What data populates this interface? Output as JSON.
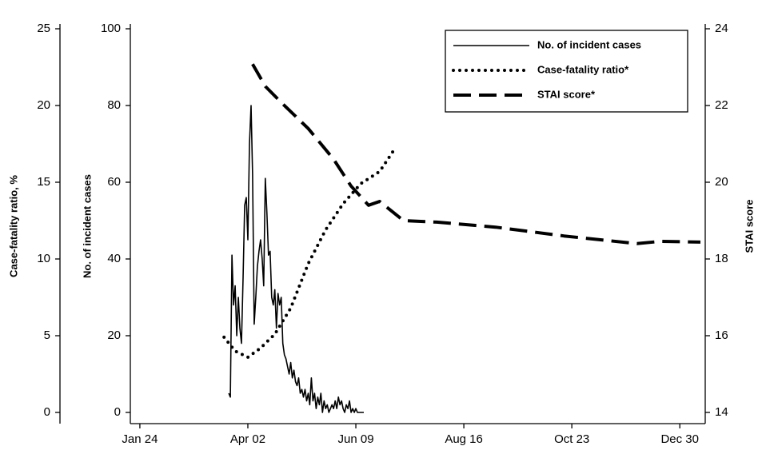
{
  "chart_data": {
    "type": "line",
    "ylabel": "No. of incident cases",
    "y2label": "STAI score",
    "y3label": "Case-fatality ratio, %",
    "xlim": [
      18,
      380
    ],
    "xticks": [
      {
        "value": 24,
        "label": "Jan 24"
      },
      {
        "value": 92,
        "label": "Apr 02"
      },
      {
        "value": 160,
        "label": "Jun 09"
      },
      {
        "value": 228,
        "label": "Aug 16"
      },
      {
        "value": 296,
        "label": "Oct 23"
      },
      {
        "value": 364,
        "label": "Dec 30"
      }
    ],
    "ylim": [
      0,
      100
    ],
    "yticks": [
      0,
      20,
      40,
      60,
      80,
      100
    ],
    "y2lim": [
      14,
      24
    ],
    "y2ticks": [
      14,
      16,
      18,
      20,
      22,
      24
    ],
    "y3lim": [
      0,
      25
    ],
    "y3ticks": [
      0,
      5,
      10,
      15,
      20,
      25
    ],
    "legend": "top-right",
    "series": [
      {
        "name": "No. of incident cases",
        "color": "#000000",
        "linestyle": "solid",
        "axis": "y",
        "x": [
          80,
          81,
          82,
          83,
          84,
          85,
          86,
          87,
          88,
          89,
          90,
          91,
          92,
          93,
          94,
          95,
          96,
          97,
          98,
          99,
          100,
          101,
          102,
          103,
          104,
          105,
          106,
          107,
          108,
          109,
          110,
          111,
          112,
          113,
          114,
          115,
          116,
          117,
          118,
          119,
          120,
          121,
          122,
          123,
          124,
          125,
          126,
          127,
          128,
          129,
          130,
          131,
          132,
          133,
          134,
          135,
          136,
          137,
          138,
          139,
          140,
          141,
          142,
          143,
          144,
          145,
          146,
          147,
          148,
          149,
          150,
          151,
          152,
          153,
          154,
          155,
          156,
          157,
          158,
          159,
          160,
          161,
          162,
          163,
          164,
          165
        ],
        "values": [
          5,
          4,
          41,
          28,
          33,
          20,
          30,
          22,
          18,
          35,
          54,
          56,
          45,
          70,
          80,
          62,
          23,
          30,
          38,
          42,
          45,
          40,
          33,
          61,
          52,
          41,
          42,
          30,
          28,
          32,
          22,
          31,
          28,
          30,
          18,
          15,
          14,
          12,
          10,
          13,
          9,
          11,
          8,
          7,
          9,
          5,
          6,
          4,
          6,
          3,
          5,
          2,
          9,
          3,
          5,
          1,
          4,
          2,
          5,
          0,
          3,
          1,
          2,
          0,
          1,
          2,
          1,
          3,
          1,
          4,
          2,
          3,
          1,
          0,
          2,
          1,
          3,
          0,
          1,
          0,
          1,
          0,
          0,
          0,
          0,
          0
        ]
      },
      {
        "name": "Case-fatality ratio*",
        "color": "#000000",
        "linestyle": "dotted",
        "axis": "y3",
        "x": [
          77,
          84,
          92,
          100,
          109,
          119,
          130,
          141,
          152,
          163,
          175,
          184
        ],
        "values": [
          4.9,
          4.0,
          3.6,
          4.2,
          5.1,
          6.8,
          9.7,
          11.9,
          13.6,
          14.9,
          15.7,
          17.1
        ]
      },
      {
        "name": "STAI score*",
        "color": "#000000",
        "linestyle": "dashed",
        "axis": "y2",
        "x": [
          95,
          103,
          114,
          130,
          146,
          157,
          168,
          175,
          190,
          211,
          248,
          291,
          337,
          352,
          377
        ],
        "values": [
          23.08,
          22.5,
          22.04,
          21.4,
          20.6,
          19.9,
          19.4,
          19.5,
          19.0,
          18.96,
          18.83,
          18.6,
          18.4,
          18.46,
          18.44
        ]
      }
    ]
  }
}
